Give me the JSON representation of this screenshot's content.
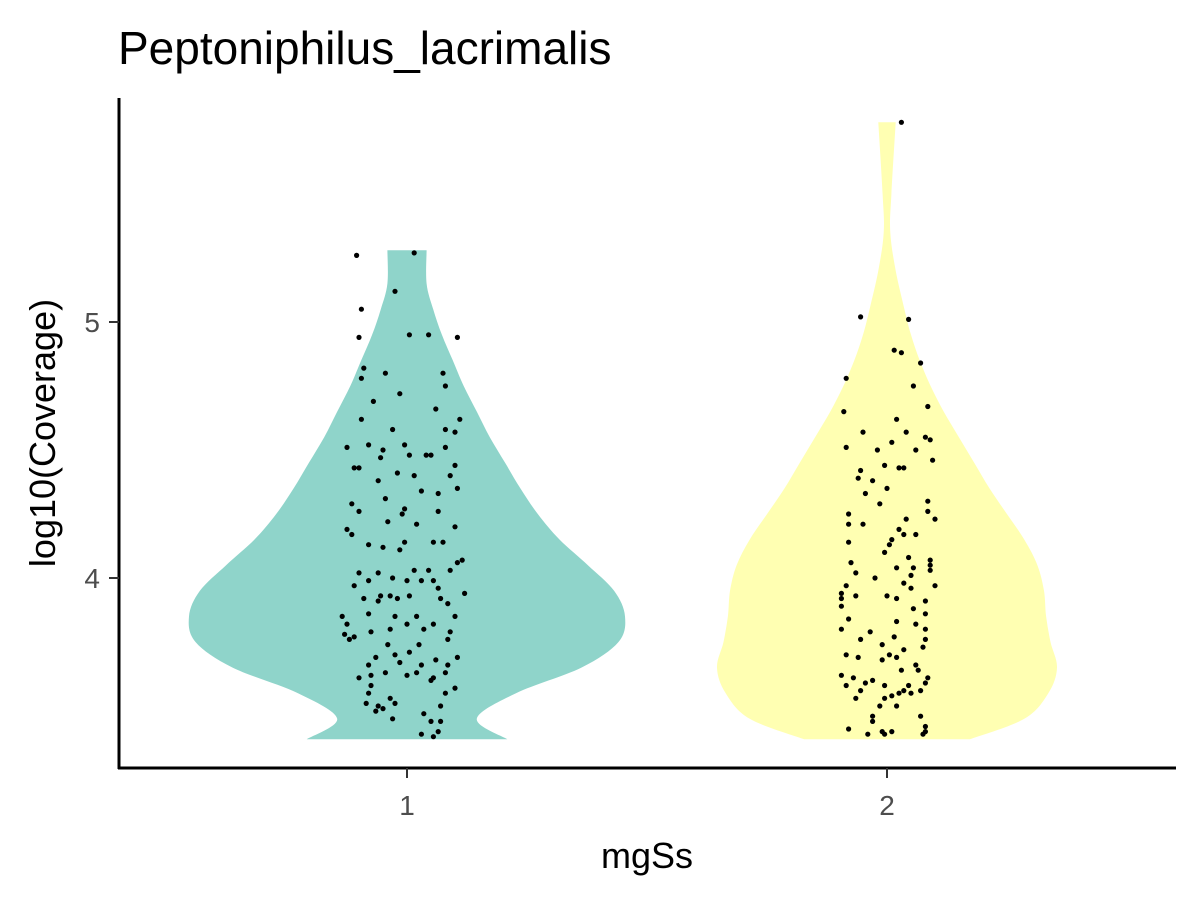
{
  "chart_data": {
    "type": "violin",
    "title": "Peptoniphilus_lacrimalis",
    "xlabel": "mgSs",
    "ylabel": "log10(Coverage)",
    "categories": [
      "1",
      "2"
    ],
    "y_ticks": [
      4,
      5
    ],
    "ylim": [
      3.3,
      5.85
    ],
    "grid": false,
    "legend": "none",
    "colors": {
      "1": "#8FD4CA",
      "2": "#FFFFB2",
      "points": "#000000",
      "axis": "#000000"
    },
    "series": [
      {
        "category": "1",
        "ymin": 3.37,
        "ymax": 5.28,
        "density": [
          [
            3.37,
            0.46
          ],
          [
            3.45,
            0.32
          ],
          [
            3.55,
            0.5
          ],
          [
            3.65,
            0.8
          ],
          [
            3.75,
            0.97
          ],
          [
            3.85,
            1.0
          ],
          [
            3.95,
            0.95
          ],
          [
            4.05,
            0.83
          ],
          [
            4.15,
            0.7
          ],
          [
            4.25,
            0.6
          ],
          [
            4.35,
            0.52
          ],
          [
            4.45,
            0.45
          ],
          [
            4.55,
            0.38
          ],
          [
            4.65,
            0.32
          ],
          [
            4.75,
            0.26
          ],
          [
            4.85,
            0.21
          ],
          [
            4.95,
            0.16
          ],
          [
            5.05,
            0.12
          ],
          [
            5.15,
            0.09
          ],
          [
            5.28,
            0.09
          ]
        ],
        "points": [
          [
            -0.21,
            5.26
          ],
          [
            0.03,
            5.27
          ],
          [
            -0.05,
            5.12
          ],
          [
            -0.19,
            5.05
          ],
          [
            -0.2,
            4.94
          ],
          [
            0.01,
            4.95
          ],
          [
            0.09,
            4.95
          ],
          [
            0.21,
            4.94
          ],
          [
            -0.18,
            4.82
          ],
          [
            -0.19,
            4.78
          ],
          [
            -0.09,
            4.8
          ],
          [
            0.15,
            4.8
          ],
          [
            -0.03,
            4.72
          ],
          [
            0.16,
            4.75
          ],
          [
            -0.14,
            4.69
          ],
          [
            -0.19,
            4.62
          ],
          [
            0.12,
            4.66
          ],
          [
            0.22,
            4.62
          ],
          [
            -0.06,
            4.58
          ],
          [
            0.16,
            4.58
          ],
          [
            0.2,
            4.57
          ],
          [
            -0.16,
            4.52
          ],
          [
            -0.01,
            4.52
          ],
          [
            0.16,
            4.51
          ],
          [
            -0.1,
            4.5
          ],
          [
            -0.25,
            4.51
          ],
          [
            -0.11,
            4.47
          ],
          [
            0.01,
            4.48
          ],
          [
            0.1,
            4.48
          ],
          [
            -0.2,
            4.43
          ],
          [
            -0.22,
            4.43
          ],
          [
            0.08,
            4.48
          ],
          [
            0.2,
            4.44
          ],
          [
            -0.04,
            4.41
          ],
          [
            0.03,
            4.4
          ],
          [
            -0.12,
            4.38
          ],
          [
            0.18,
            4.4
          ],
          [
            -0.09,
            4.31
          ],
          [
            0.06,
            4.34
          ],
          [
            0.21,
            4.35
          ],
          [
            -0.23,
            4.29
          ],
          [
            -0.02,
            4.25
          ],
          [
            0.13,
            4.33
          ],
          [
            -0.2,
            4.26
          ],
          [
            -0.01,
            4.27
          ],
          [
            0.13,
            4.26
          ],
          [
            -0.25,
            4.19
          ],
          [
            -0.08,
            4.22
          ],
          [
            0.04,
            4.21
          ],
          [
            0.2,
            4.2
          ],
          [
            -0.23,
            4.17
          ],
          [
            -0.16,
            4.13
          ],
          [
            -0.01,
            4.14
          ],
          [
            0.11,
            4.14
          ],
          [
            0.15,
            4.14
          ],
          [
            -0.1,
            4.12
          ],
          [
            -0.03,
            4.11
          ],
          [
            0.23,
            4.07
          ],
          [
            0.18,
            4.03
          ],
          [
            -0.2,
            4.02
          ],
          [
            -0.12,
            4.02
          ],
          [
            0.03,
            4.03
          ],
          [
            0.09,
            4.03
          ],
          [
            0.21,
            4.06
          ],
          [
            -0.06,
            4.0
          ],
          [
            0.0,
            3.99
          ],
          [
            0.11,
            3.99
          ],
          [
            -0.16,
            3.99
          ],
          [
            -0.22,
            3.97
          ],
          [
            -0.11,
            3.93
          ],
          [
            -0.07,
            3.93
          ],
          [
            0.06,
            3.99
          ],
          [
            0.13,
            3.96
          ],
          [
            0.24,
            3.94
          ],
          [
            -0.18,
            3.92
          ],
          [
            -0.12,
            3.91
          ],
          [
            -0.04,
            3.92
          ],
          [
            0.01,
            3.93
          ],
          [
            0.14,
            3.92
          ],
          [
            0.17,
            3.9
          ],
          [
            -0.27,
            3.85
          ],
          [
            -0.25,
            3.82
          ],
          [
            -0.16,
            3.86
          ],
          [
            -0.05,
            3.85
          ],
          [
            0.04,
            3.85
          ],
          [
            0.11,
            3.82
          ],
          [
            0.2,
            3.85
          ],
          [
            -0.26,
            3.78
          ],
          [
            -0.22,
            3.77
          ],
          [
            -0.15,
            3.79
          ],
          [
            -0.07,
            3.8
          ],
          [
            0.0,
            3.82
          ],
          [
            0.07,
            3.8
          ],
          [
            0.18,
            3.79
          ],
          [
            -0.24,
            3.76
          ],
          [
            -0.08,
            3.74
          ],
          [
            0.05,
            3.74
          ],
          [
            0.17,
            3.76
          ],
          [
            -0.13,
            3.69
          ],
          [
            -0.05,
            3.7
          ],
          [
            0.01,
            3.71
          ],
          [
            0.12,
            3.68
          ],
          [
            0.21,
            3.69
          ],
          [
            -0.16,
            3.66
          ],
          [
            -0.03,
            3.67
          ],
          [
            0.06,
            3.66
          ],
          [
            0.17,
            3.66
          ],
          [
            0.04,
            3.63
          ],
          [
            -0.2,
            3.61
          ],
          [
            -0.15,
            3.62
          ],
          [
            -0.09,
            3.63
          ],
          [
            0.0,
            3.62
          ],
          [
            0.11,
            3.61
          ],
          [
            0.16,
            3.63
          ],
          [
            -0.15,
            3.58
          ],
          [
            0.1,
            3.6
          ],
          [
            0.2,
            3.57
          ],
          [
            -0.16,
            3.55
          ],
          [
            -0.07,
            3.53
          ],
          [
            0.16,
            3.55
          ],
          [
            -0.17,
            3.51
          ],
          [
            -0.12,
            3.5
          ],
          [
            -0.05,
            3.51
          ],
          [
            0.14,
            3.5
          ],
          [
            -0.13,
            3.48
          ],
          [
            -0.1,
            3.49
          ],
          [
            0.07,
            3.47
          ],
          [
            0.1,
            3.44
          ],
          [
            -0.06,
            3.45
          ],
          [
            0.14,
            3.44
          ],
          [
            0.06,
            3.39
          ],
          [
            0.13,
            3.4
          ],
          [
            0.11,
            3.38
          ]
        ]
      },
      {
        "category": "2",
        "ymin": 3.37,
        "ymax": 5.78,
        "density": [
          [
            3.37,
            0.38
          ],
          [
            3.45,
            0.63
          ],
          [
            3.55,
            0.74
          ],
          [
            3.65,
            0.78
          ],
          [
            3.75,
            0.75
          ],
          [
            3.85,
            0.73
          ],
          [
            3.95,
            0.72
          ],
          [
            4.05,
            0.69
          ],
          [
            4.15,
            0.63
          ],
          [
            4.25,
            0.55
          ],
          [
            4.35,
            0.47
          ],
          [
            4.45,
            0.4
          ],
          [
            4.55,
            0.33
          ],
          [
            4.65,
            0.26
          ],
          [
            4.75,
            0.2
          ],
          [
            4.85,
            0.15
          ],
          [
            4.95,
            0.11
          ],
          [
            5.05,
            0.08
          ],
          [
            5.2,
            0.04
          ],
          [
            5.35,
            0.015
          ],
          [
            5.5,
            0.02
          ],
          [
            5.78,
            0.04
          ]
        ],
        "points": [
          [
            0.06,
            5.78
          ],
          [
            -0.11,
            5.02
          ],
          [
            0.09,
            5.01
          ],
          [
            -0.17,
            4.78
          ],
          [
            0.03,
            4.89
          ],
          [
            0.06,
            4.88
          ],
          [
            0.14,
            4.84
          ],
          [
            0.11,
            4.75
          ],
          [
            -0.18,
            4.65
          ],
          [
            0.04,
            4.62
          ],
          [
            0.17,
            4.67
          ],
          [
            -0.1,
            4.57
          ],
          [
            0.08,
            4.57
          ],
          [
            0.16,
            4.55
          ],
          [
            0.18,
            4.54
          ],
          [
            -0.17,
            4.51
          ],
          [
            -0.04,
            4.5
          ],
          [
            0.02,
            4.53
          ],
          [
            0.12,
            4.5
          ],
          [
            0.19,
            4.46
          ],
          [
            -0.11,
            4.42
          ],
          [
            -0.12,
            4.39
          ],
          [
            -0.06,
            4.38
          ],
          [
            -0.01,
            4.44
          ],
          [
            0.05,
            4.43
          ],
          [
            0.07,
            4.43
          ],
          [
            -0.09,
            4.33
          ],
          [
            0.0,
            4.35
          ],
          [
            -0.03,
            4.29
          ],
          [
            -0.16,
            4.25
          ],
          [
            0.17,
            4.3
          ],
          [
            0.17,
            4.26
          ],
          [
            -0.16,
            4.21
          ],
          [
            0.08,
            4.23
          ],
          [
            0.2,
            4.23
          ],
          [
            -0.1,
            4.21
          ],
          [
            0.05,
            4.19
          ],
          [
            0.07,
            4.17
          ],
          [
            0.02,
            4.15
          ],
          [
            0.12,
            4.17
          ],
          [
            -0.16,
            4.14
          ],
          [
            0.01,
            4.13
          ],
          [
            -0.01,
            4.1
          ],
          [
            0.09,
            4.08
          ],
          [
            -0.15,
            4.06
          ],
          [
            0.18,
            4.07
          ],
          [
            0.18,
            4.05
          ],
          [
            -0.13,
            4.02
          ],
          [
            0.04,
            4.04
          ],
          [
            0.11,
            4.04
          ],
          [
            0.18,
            4.03
          ],
          [
            -0.05,
            4.0
          ],
          [
            0.1,
            4.01
          ],
          [
            -0.17,
            3.97
          ],
          [
            0.07,
            3.98
          ],
          [
            -0.19,
            3.94
          ],
          [
            0.1,
            3.96
          ],
          [
            0.2,
            3.97
          ],
          [
            -0.19,
            3.92
          ],
          [
            -0.13,
            3.93
          ],
          [
            0.0,
            3.93
          ],
          [
            0.04,
            3.92
          ],
          [
            0.16,
            3.91
          ],
          [
            -0.19,
            3.89
          ],
          [
            0.11,
            3.88
          ],
          [
            0.16,
            3.86
          ],
          [
            -0.16,
            3.84
          ],
          [
            0.04,
            3.83
          ],
          [
            0.12,
            3.82
          ],
          [
            -0.19,
            3.8
          ],
          [
            -0.07,
            3.79
          ],
          [
            0.16,
            3.8
          ],
          [
            -0.11,
            3.76
          ],
          [
            0.03,
            3.77
          ],
          [
            0.16,
            3.76
          ],
          [
            -0.02,
            3.74
          ],
          [
            0.07,
            3.72
          ],
          [
            0.15,
            3.73
          ],
          [
            -0.17,
            3.7
          ],
          [
            -0.12,
            3.69
          ],
          [
            -0.02,
            3.68
          ],
          [
            0.01,
            3.7
          ],
          [
            0.04,
            3.69
          ],
          [
            0.12,
            3.66
          ],
          [
            0.13,
            3.64
          ],
          [
            -0.19,
            3.62
          ],
          [
            0.06,
            3.64
          ],
          [
            -0.14,
            3.61
          ],
          [
            -0.06,
            3.6
          ],
          [
            0.17,
            3.61
          ],
          [
            -0.09,
            3.59
          ],
          [
            -0.17,
            3.58
          ],
          [
            -0.01,
            3.58
          ],
          [
            0.09,
            3.58
          ],
          [
            0.16,
            3.59
          ],
          [
            -0.11,
            3.56
          ],
          [
            0.07,
            3.56
          ],
          [
            0.05,
            3.55
          ],
          [
            0.1,
            3.55
          ],
          [
            0.14,
            3.56
          ],
          [
            -0.13,
            3.53
          ],
          [
            -0.01,
            3.53
          ],
          [
            0.02,
            3.54
          ],
          [
            -0.03,
            3.5
          ],
          [
            0.04,
            3.5
          ],
          [
            -0.06,
            3.46
          ],
          [
            0.14,
            3.46
          ],
          [
            -0.06,
            3.44
          ],
          [
            0.16,
            3.42
          ],
          [
            -0.16,
            3.41
          ],
          [
            -0.02,
            3.4
          ],
          [
            -0.01,
            3.39
          ],
          [
            0.02,
            3.4
          ],
          [
            0.15,
            3.39
          ],
          [
            -0.08,
            3.39
          ],
          [
            0.16,
            3.4
          ]
        ]
      }
    ]
  }
}
